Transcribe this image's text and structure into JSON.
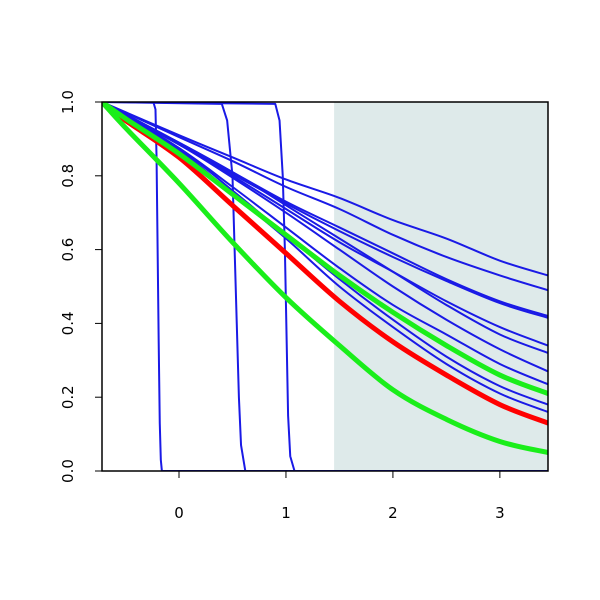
{
  "chart_data": {
    "type": "line",
    "title": "",
    "xlabel": "",
    "ylabel": "",
    "xlim": [
      -0.72,
      3.45
    ],
    "ylim": [
      0,
      1
    ],
    "x_ticks": [
      0,
      1,
      2,
      3
    ],
    "x_tick_labels": [
      "0",
      "1",
      "2",
      "3"
    ],
    "y_ticks": [
      0,
      0.2,
      0.4,
      0.6,
      0.8,
      1.0
    ],
    "y_tick_labels": [
      "0.0",
      "0.2",
      "0.4",
      "0.6",
      "0.8",
      "1.0"
    ],
    "grid": false,
    "legend": "none",
    "shaded_region": {
      "x_from": 1.45,
      "x_to": 3.45,
      "color": "#deeaea"
    },
    "colors": {
      "blue": "#1a1ae6",
      "red": "#ff0000",
      "green": "#1aee1a"
    },
    "series": [
      {
        "style": "blue",
        "x": [
          -0.72,
          0.0,
          0.5,
          1.0,
          1.5,
          2.0,
          2.5,
          3.0,
          3.45
        ],
        "y": [
          1.0,
          0.91,
          0.85,
          0.79,
          0.74,
          0.68,
          0.63,
          0.57,
          0.53
        ]
      },
      {
        "style": "blue",
        "x": [
          -0.72,
          0.0,
          0.5,
          1.0,
          1.5,
          2.0,
          2.5,
          3.0,
          3.45
        ],
        "y": [
          1.0,
          0.905,
          0.84,
          0.77,
          0.71,
          0.64,
          0.58,
          0.53,
          0.49
        ]
      },
      {
        "style": "blue",
        "x": [
          -0.72,
          0.0,
          0.5,
          1.0,
          1.5,
          2.0,
          2.5,
          3.0,
          3.45
        ],
        "y": [
          1.0,
          0.89,
          0.81,
          0.73,
          0.66,
          0.59,
          0.52,
          0.46,
          0.42
        ]
      },
      {
        "style": "blue",
        "x": [
          -0.72,
          0.0,
          0.5,
          1.0,
          1.5,
          2.0,
          2.5,
          3.0,
          3.45
        ],
        "y": [
          1.0,
          0.885,
          0.805,
          0.725,
          0.65,
          0.58,
          0.515,
          0.455,
          0.415
        ]
      },
      {
        "style": "blue",
        "x": [
          -0.72,
          0.0,
          0.5,
          1.0,
          1.5,
          2.0,
          2.5,
          3.0,
          3.45
        ],
        "y": [
          1.0,
          0.885,
          0.8,
          0.71,
          0.62,
          0.54,
          0.46,
          0.39,
          0.34
        ]
      },
      {
        "style": "blue",
        "x": [
          -0.72,
          0.0,
          0.5,
          1.0,
          1.5,
          2.0,
          2.5,
          3.0,
          3.45
        ],
        "y": [
          1.0,
          0.89,
          0.81,
          0.72,
          0.63,
          0.54,
          0.45,
          0.37,
          0.32
        ]
      },
      {
        "style": "blue",
        "x": [
          -0.72,
          0.0,
          0.5,
          1.0,
          1.5,
          2.0,
          2.5,
          3.0,
          3.45
        ],
        "y": [
          1.0,
          0.885,
          0.795,
          0.7,
          0.6,
          0.5,
          0.41,
          0.33,
          0.27
        ]
      },
      {
        "style": "blue",
        "x": [
          -0.72,
          0.0,
          0.5,
          1.0,
          1.5,
          2.0,
          2.5,
          3.0,
          3.45
        ],
        "y": [
          1.0,
          0.875,
          0.77,
          0.66,
          0.55,
          0.45,
          0.37,
          0.29,
          0.235
        ]
      },
      {
        "style": "blue",
        "x": [
          -0.72,
          0.0,
          0.5,
          1.0,
          1.5,
          2.0,
          2.5,
          3.0,
          3.45
        ],
        "y": [
          1.0,
          0.875,
          0.76,
          0.64,
          0.52,
          0.41,
          0.31,
          0.23,
          0.18
        ]
      },
      {
        "style": "blue",
        "x": [
          -0.72,
          0.0,
          0.5,
          1.0,
          1.5,
          2.0,
          2.5,
          3.0,
          3.45
        ],
        "y": [
          1.0,
          0.87,
          0.75,
          0.63,
          0.5,
          0.39,
          0.29,
          0.21,
          0.16
        ]
      },
      {
        "style": "blue-step",
        "x": [
          -0.72,
          -0.24,
          -0.22,
          -0.21,
          -0.2,
          -0.19,
          -0.18,
          -0.17,
          -0.16,
          3.45
        ],
        "y": [
          1.0,
          1.0,
          0.98,
          0.85,
          0.6,
          0.35,
          0.13,
          0.03,
          0.0,
          0.0
        ]
      },
      {
        "style": "blue-step",
        "x": [
          -0.72,
          0.4,
          0.45,
          0.5,
          0.52,
          0.54,
          0.56,
          0.58,
          0.62,
          3.45
        ],
        "y": [
          1.0,
          0.995,
          0.95,
          0.8,
          0.6,
          0.4,
          0.2,
          0.07,
          0.0,
          0.0
        ]
      },
      {
        "style": "blue-step",
        "x": [
          -0.72,
          0.9,
          0.94,
          0.97,
          0.99,
          1.0,
          1.01,
          1.02,
          1.04,
          1.08,
          3.45
        ],
        "y": [
          1.0,
          0.995,
          0.95,
          0.8,
          0.6,
          0.45,
          0.3,
          0.15,
          0.04,
          0.0,
          0.0
        ]
      },
      {
        "style": "red",
        "x": [
          -0.72,
          -0.5,
          0.0,
          0.5,
          1.0,
          1.5,
          2.0,
          2.5,
          3.0,
          3.45
        ],
        "y": [
          1.0,
          0.95,
          0.85,
          0.72,
          0.59,
          0.46,
          0.35,
          0.26,
          0.18,
          0.13
        ]
      },
      {
        "style": "green",
        "x": [
          -0.72,
          -0.5,
          0.0,
          0.5,
          1.0,
          1.5,
          2.0,
          2.5,
          3.0,
          3.45
        ],
        "y": [
          1.0,
          0.955,
          0.86,
          0.75,
          0.64,
          0.53,
          0.43,
          0.34,
          0.26,
          0.21
        ]
      },
      {
        "style": "green",
        "x": [
          -0.72,
          -0.5,
          0.0,
          0.5,
          1.0,
          1.5,
          2.0,
          2.5,
          3.0,
          3.45
        ],
        "y": [
          1.0,
          0.93,
          0.78,
          0.62,
          0.47,
          0.34,
          0.22,
          0.14,
          0.08,
          0.05
        ]
      }
    ]
  }
}
